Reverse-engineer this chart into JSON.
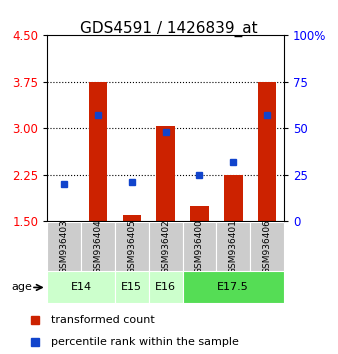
{
  "title": "GDS4591 / 1426839_at",
  "samples": [
    "GSM936403",
    "GSM936404",
    "GSM936405",
    "GSM936402",
    "GSM936400",
    "GSM936401",
    "GSM936406"
  ],
  "red_values": [
    1.51,
    3.75,
    1.6,
    3.03,
    1.75,
    2.25,
    3.75
  ],
  "blue_values": [
    20,
    57,
    21,
    48,
    25,
    32,
    57
  ],
  "ylim_left": [
    1.5,
    4.5
  ],
  "ylim_right": [
    0,
    100
  ],
  "yticks_left": [
    1.5,
    2.25,
    3.0,
    3.75,
    4.5
  ],
  "yticks_right": [
    0,
    25,
    50,
    75,
    100
  ],
  "ytick_right_labels": [
    "0",
    "25",
    "50",
    "75",
    "100%"
  ],
  "age_groups": [
    {
      "label": "E14",
      "samples": [
        0,
        1
      ],
      "color": "#ccffcc"
    },
    {
      "label": "E15",
      "samples": [
        2
      ],
      "color": "#ccffcc"
    },
    {
      "label": "E16",
      "samples": [
        3
      ],
      "color": "#ccffcc"
    },
    {
      "label": "E17.5",
      "samples": [
        4,
        5,
        6
      ],
      "color": "#55dd55"
    }
  ],
  "bar_color": "#cc2200",
  "dot_color": "#1144cc",
  "baseline": 1.5,
  "sample_bg": "#cccccc",
  "title_fontsize": 11,
  "tick_fontsize": 8.5,
  "legend_fontsize": 8,
  "sample_fontsize": 6.5,
  "age_fontsize": 8
}
